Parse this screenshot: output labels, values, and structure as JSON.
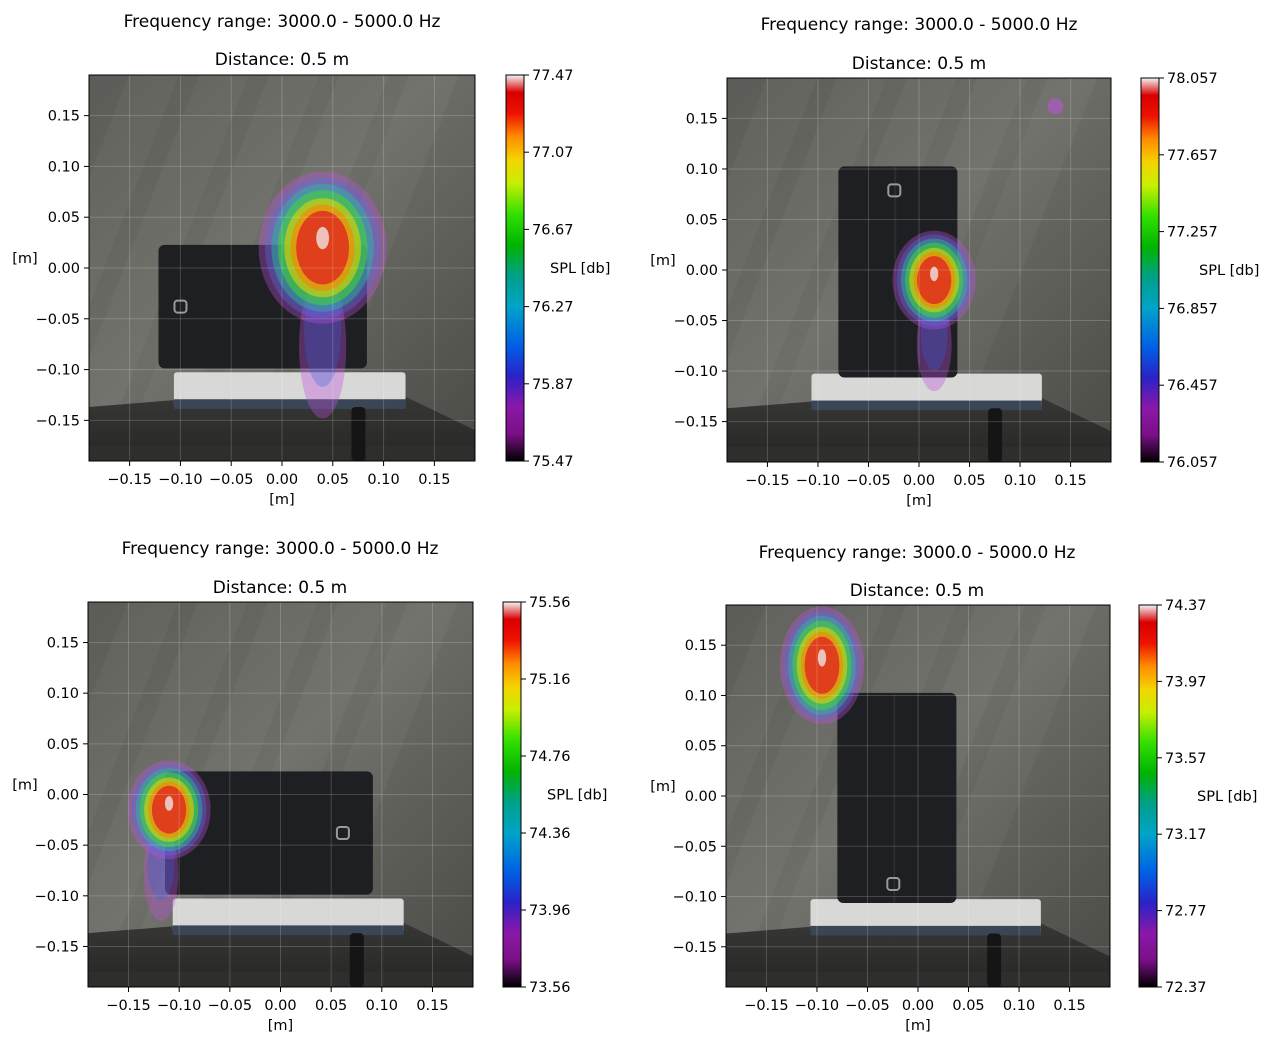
{
  "chart_data": [
    {
      "type": "heatmap",
      "title": "Frequency range: 3000.0 - 5000.0 Hz",
      "subtitle": "Distance: 0.5 m",
      "xlabel": "[m]",
      "ylabel": "[m]",
      "xlim": [
        -0.19,
        0.19
      ],
      "ylim": [
        -0.19,
        0.19
      ],
      "x_ticks": [
        "−0.15",
        "−0.10",
        "−0.05",
        "0.00",
        "0.05",
        "0.10",
        "0.15"
      ],
      "y_ticks": [
        "0.15",
        "0.10",
        "0.05",
        "0.00",
        "−0.05",
        "−0.10",
        "−0.15"
      ],
      "grid": true,
      "colorbar": {
        "label": "SPL [db]",
        "min": 75.47,
        "max": 77.47,
        "ticks": [
          "77.47",
          "77.07",
          "76.67",
          "76.27",
          "75.87",
          "75.47"
        ]
      },
      "hotspot": {
        "x": 0.04,
        "y": 0.02,
        "level_max": 77.47
      },
      "background": "photo of black tablet lying sideways on a book"
    },
    {
      "type": "heatmap",
      "title": "Frequency range: 3000.0 - 5000.0 Hz",
      "subtitle": "Distance: 0.5 m",
      "xlabel": "[m]",
      "ylabel": "[m]",
      "xlim": [
        -0.19,
        0.19
      ],
      "ylim": [
        -0.19,
        0.19
      ],
      "x_ticks": [
        "−0.15",
        "−0.10",
        "−0.05",
        "0.00",
        "0.05",
        "0.10",
        "0.15"
      ],
      "y_ticks": [
        "0.15",
        "0.10",
        "0.05",
        "0.00",
        "−0.05",
        "−0.10",
        "−0.15"
      ],
      "grid": true,
      "colorbar": {
        "label": "SPL [db]",
        "min": 76.057,
        "max": 78.057,
        "ticks": [
          "78.057",
          "77.657",
          "77.257",
          "76.857",
          "76.457",
          "76.057"
        ]
      },
      "hotspot": {
        "x": 0.015,
        "y": -0.01,
        "level_max": 78.057
      },
      "background": "photo of black tablet standing upright on a book"
    },
    {
      "type": "heatmap",
      "title": "Frequency range: 3000.0 - 5000.0 Hz",
      "subtitle": "Distance: 0.5 m",
      "xlabel": "[m]",
      "ylabel": "[m]",
      "xlim": [
        -0.19,
        0.19
      ],
      "ylim": [
        -0.19,
        0.19
      ],
      "x_ticks": [
        "−0.15",
        "−0.10",
        "−0.05",
        "0.00",
        "0.05",
        "0.10",
        "0.15"
      ],
      "y_ticks": [
        "0.15",
        "0.10",
        "0.05",
        "0.00",
        "−0.05",
        "−0.10",
        "−0.15"
      ],
      "grid": true,
      "colorbar": {
        "label": "SPL [db]",
        "min": 73.56,
        "max": 75.56,
        "ticks": [
          "75.56",
          "75.16",
          "74.76",
          "74.36",
          "73.96",
          "73.56"
        ]
      },
      "hotspot": {
        "x": -0.11,
        "y": -0.015,
        "level_max": 75.56
      },
      "background": "photo of black tablet lying sideways on a book"
    },
    {
      "type": "heatmap",
      "title": "Frequency range: 3000.0 - 5000.0 Hz",
      "subtitle": "Distance: 0.5 m",
      "xlabel": "[m]",
      "ylabel": "[m]",
      "xlim": [
        -0.19,
        0.19
      ],
      "ylim": [
        -0.19,
        0.19
      ],
      "x_ticks": [
        "−0.15",
        "−0.10",
        "−0.05",
        "0.00",
        "0.05",
        "0.10",
        "0.15"
      ],
      "y_ticks": [
        "0.15",
        "0.10",
        "0.05",
        "0.00",
        "−0.05",
        "−0.10",
        "−0.15"
      ],
      "grid": true,
      "colorbar": {
        "label": "SPL [db]",
        "min": 72.37,
        "max": 74.37,
        "ticks": [
          "74.37",
          "73.97",
          "73.57",
          "73.17",
          "72.77",
          "72.37"
        ]
      },
      "hotspot": {
        "x": -0.095,
        "y": 0.13,
        "level_max": 74.37
      },
      "background": "photo of black tablet standing upright on a book"
    }
  ]
}
